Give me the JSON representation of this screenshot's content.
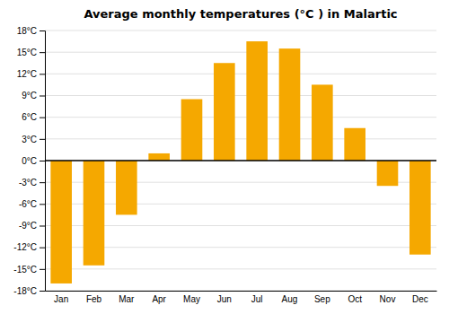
{
  "chart_data": {
    "type": "bar",
    "title": "Average monthly temperatures (°C ) in Malartic",
    "categories": [
      "Jan",
      "Feb",
      "Mar",
      "Apr",
      "May",
      "Jun",
      "Jul",
      "Aug",
      "Sep",
      "Oct",
      "Nov",
      "Dec"
    ],
    "values": [
      -17,
      -14.5,
      -7.5,
      1,
      8.5,
      13.5,
      16.5,
      15.5,
      10.5,
      4.5,
      -3.5,
      -13
    ],
    "color": "#F5A800",
    "ylim": [
      -18,
      18
    ],
    "yticks": [
      {
        "value": -18,
        "label": "-18°C"
      },
      {
        "value": -15,
        "label": "-15°C"
      },
      {
        "value": -12,
        "label": "-12°C"
      },
      {
        "value": -9,
        "label": "-9°C"
      },
      {
        "value": -6,
        "label": "-6°C"
      },
      {
        "value": -3,
        "label": "-3°C"
      },
      {
        "value": 0,
        "label": "0°C"
      },
      {
        "value": 3,
        "label": "3°C"
      },
      {
        "value": 6,
        "label": "6°C"
      },
      {
        "value": 9,
        "label": "9°C"
      },
      {
        "value": 12,
        "label": "12°C"
      },
      {
        "value": 15,
        "label": "15°C"
      },
      {
        "value": 18,
        "label": "18°C"
      }
    ],
    "grid": true
  }
}
